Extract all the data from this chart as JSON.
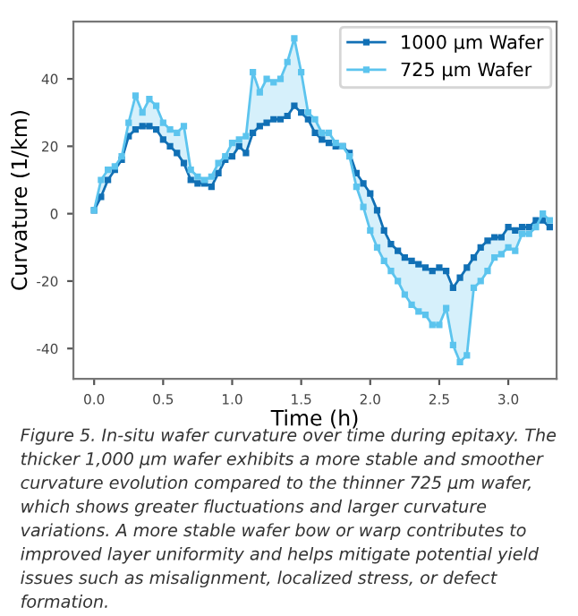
{
  "chart_data": {
    "type": "line",
    "xlabel": "Time (h)",
    "ylabel": "Curvature (1/km)",
    "x": [
      0,
      0.05,
      0.1,
      0.15,
      0.2,
      0.25,
      0.3,
      0.35,
      0.4,
      0.45,
      0.5,
      0.55,
      0.6,
      0.65,
      0.7,
      0.75,
      0.8,
      0.85,
      0.9,
      0.95,
      1.0,
      1.05,
      1.1,
      1.15,
      1.2,
      1.25,
      1.3,
      1.35,
      1.4,
      1.45,
      1.5,
      1.55,
      1.6,
      1.65,
      1.7,
      1.75,
      1.8,
      1.85,
      1.9,
      1.95,
      2.0,
      2.05,
      2.1,
      2.15,
      2.2,
      2.25,
      2.3,
      2.35,
      2.4,
      2.45,
      2.5,
      2.55,
      2.6,
      2.65,
      2.7,
      2.75,
      2.8,
      2.85,
      2.9,
      2.95,
      3.0,
      3.05,
      3.1,
      3.15,
      3.2,
      3.25,
      3.3
    ],
    "series": [
      {
        "name": "1000 µm Wafer",
        "color": "#1170b5",
        "values": [
          1,
          5,
          10,
          13,
          16,
          23,
          25,
          26,
          26,
          25,
          22,
          20,
          18,
          15,
          10,
          9,
          9,
          8,
          12,
          16,
          17,
          20,
          18,
          24,
          26,
          27,
          28,
          28,
          29,
          32,
          30,
          28,
          24,
          22,
          21,
          20,
          20,
          18,
          12,
          9,
          6,
          1,
          -5,
          -9,
          -11,
          -13,
          -14,
          -15,
          -16,
          -17,
          -16,
          -17,
          -22,
          -19,
          -16,
          -13,
          -10,
          -8,
          -7,
          -7,
          -4,
          -5,
          -4,
          -4,
          -2,
          -2,
          -4
        ]
      },
      {
        "name": "725 µm Wafer",
        "color": "#5cc4ee",
        "values": [
          1,
          10,
          13,
          14,
          17,
          27,
          35,
          30,
          34,
          32,
          27,
          25,
          24,
          26,
          13,
          11,
          10,
          11,
          15,
          17,
          21,
          22,
          23,
          42,
          36,
          40,
          39,
          40,
          45,
          52,
          42,
          30,
          28,
          24,
          24,
          21,
          20,
          17,
          8,
          2,
          -5,
          -10,
          -14,
          -17,
          -20,
          -24,
          -27,
          -29,
          -30,
          -33,
          -33,
          -28,
          -39,
          -44,
          -42,
          -22,
          -20,
          -17,
          -13,
          -12,
          -10,
          -11,
          -6,
          -6,
          -4,
          0,
          -2
        ],
        "lower": [
          1,
          5,
          10,
          13,
          16,
          23,
          25,
          26,
          26,
          25,
          22,
          20,
          18,
          15,
          10,
          9,
          9,
          8,
          12,
          16,
          17,
          20,
          18,
          24,
          26,
          27,
          28,
          28,
          29,
          32,
          30,
          28,
          24,
          22,
          21,
          20,
          20,
          18,
          12,
          9,
          6,
          1,
          -5,
          -9,
          -11,
          -13,
          -14,
          -15,
          -16,
          -17,
          -16,
          -17,
          -22,
          -19,
          -16,
          -13,
          -10,
          -8,
          -7,
          -7,
          -4,
          -5,
          -4,
          -4,
          -2,
          -2,
          -4
        ],
        "upper": [
          1,
          10,
          13,
          14,
          17,
          27,
          35,
          30,
          34,
          32,
          27,
          25,
          24,
          26,
          13,
          11,
          10,
          11,
          15,
          17,
          21,
          22,
          23,
          42,
          36,
          40,
          39,
          40,
          45,
          52,
          42,
          30,
          28,
          24,
          24,
          21,
          20,
          17,
          8,
          2,
          -5,
          -10,
          -14,
          -17,
          -20,
          -24,
          -27,
          -29,
          -30,
          -33,
          -33,
          -28,
          -39,
          -44,
          -42,
          -22,
          -20,
          -17,
          -13,
          -12,
          -10,
          -11,
          -6,
          -6,
          -4,
          0,
          -2
        ]
      }
    ],
    "xlim": [
      -0.15,
      3.35
    ],
    "ylim": [
      -49,
      57
    ],
    "xticks": [
      {
        "value": 0,
        "label": "0.0"
      },
      {
        "value": 0.5,
        "label": "0.5"
      },
      {
        "value": 1,
        "label": "1.0"
      },
      {
        "value": 1.5,
        "label": "1.5"
      },
      {
        "value": 2,
        "label": "2.0"
      },
      {
        "value": 2.5,
        "label": "2.5"
      },
      {
        "value": 3,
        "label": "3.0"
      }
    ],
    "yticks": [
      -40,
      -20,
      0,
      20,
      40
    ],
    "marker": "square",
    "line_style": "solid",
    "legend": "top right",
    "grid": false,
    "annotations": [
      "Figure 5. In-situ wafer curvature over time during epitaxy. The thicker 1,000 µm wafer exhibits a more stable and smoother curvature evolution compared to the thinner 725 µm wafer, which shows greater fluctuations and larger curvature variations. A more stable wafer bow or warp contributes to improved layer uniformity and helps mitigate potential yield issues such as misalignment, localized stress, or defect formation."
    ]
  }
}
